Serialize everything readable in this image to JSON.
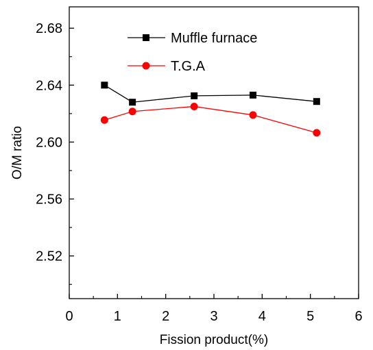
{
  "chart_data": {
    "type": "line",
    "title": "",
    "xlabel": "Fission product(%)",
    "ylabel": "O/M ratio",
    "xlim": [
      0,
      6
    ],
    "ylim": [
      2.49,
      2.695
    ],
    "xticks": [
      0,
      1,
      2,
      3,
      4,
      5,
      6
    ],
    "yticks": [
      2.52,
      2.56,
      2.6,
      2.64,
      2.68
    ],
    "xtick_labels": [
      "0",
      "1",
      "2",
      "3",
      "4",
      "5",
      "6"
    ],
    "ytick_labels": [
      "2.52",
      "2.56",
      "2.60",
      "2.64",
      "2.68"
    ],
    "grid": false,
    "legend_position": "top-center",
    "series": [
      {
        "name": "Muffle furnace",
        "marker": "square",
        "color": "#000000",
        "x": [
          0.73,
          1.31,
          2.59,
          3.81,
          5.13
        ],
        "y": [
          2.64,
          2.628,
          2.6325,
          2.633,
          2.6285
        ]
      },
      {
        "name": "T.G.A",
        "marker": "circle",
        "color": "#ff0000",
        "x": [
          0.73,
          1.31,
          2.59,
          3.81,
          5.13
        ],
        "y": [
          2.6155,
          2.6215,
          2.625,
          2.619,
          2.6065
        ]
      }
    ]
  }
}
